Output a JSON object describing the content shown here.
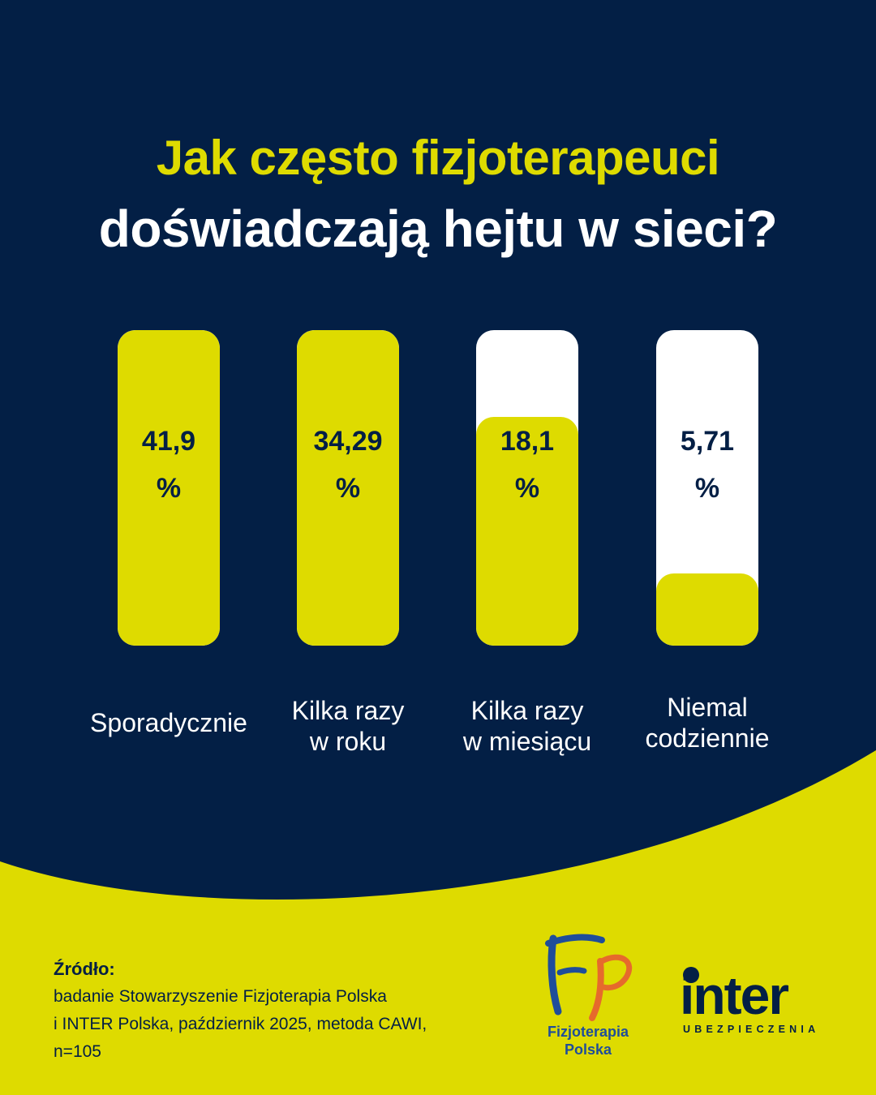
{
  "title": {
    "line1": "Jak często fizjoterapeuci",
    "line2": "doświadczają hejtu w sieci?"
  },
  "chart_data": {
    "type": "bar",
    "title": "Jak często fizjoterapeuci doświadczają hejtu w sieci?",
    "unit": "%",
    "ylim": [
      0,
      100
    ],
    "categories": [
      [
        "Sporadycznie"
      ],
      [
        "Kilka razy",
        "w roku"
      ],
      [
        "Kilka razy",
        "w miesiącu"
      ],
      [
        "Niemal",
        "codziennie"
      ]
    ],
    "values": [
      41.9,
      34.29,
      18.1,
      5.71
    ],
    "value_labels": [
      "41,9",
      "34,29",
      "18,1",
      "5,71"
    ]
  },
  "source": {
    "heading": "Źródło:",
    "lines": [
      "badanie Stowarzyszenie Fizjoterapia Polska",
      "i INTER Polska, październik 2025, metoda CAWI,",
      "n=105"
    ]
  },
  "logos": {
    "fizjoterapia": {
      "icon": "fp-logo-icon",
      "name_lines": [
        "Fizjoterapia",
        "Polska"
      ]
    },
    "inter": {
      "icon": "inter-logo-icon",
      "word": "inter",
      "sub": "UBEZPIECZENIA"
    }
  },
  "colors": {
    "navy": "#031f45",
    "yellow": "#dedb00",
    "white": "#ffffff",
    "fp_blue": "#1f4d9a",
    "fp_orange": "#e66a2c"
  }
}
